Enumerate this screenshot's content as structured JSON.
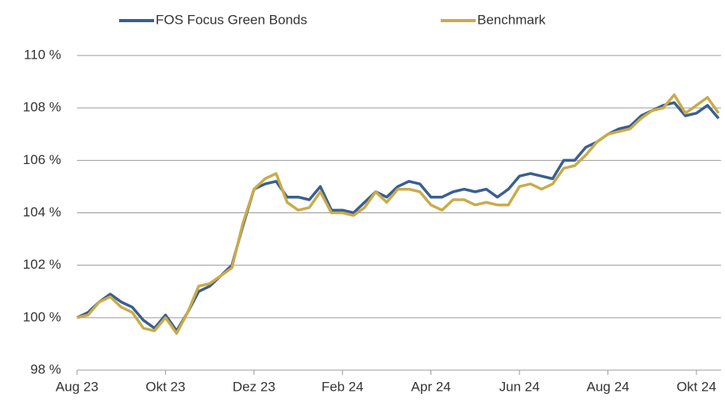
{
  "chart_data": {
    "type": "line",
    "categories": [
      "Aug 23",
      null,
      null,
      null,
      null,
      null,
      null,
      null,
      "Okt 23",
      null,
      null,
      null,
      null,
      null,
      null,
      null,
      "Dez 23",
      null,
      null,
      null,
      null,
      null,
      null,
      null,
      "Feb 24",
      null,
      null,
      null,
      null,
      null,
      null,
      null,
      "Apr 24",
      null,
      null,
      null,
      null,
      null,
      null,
      null,
      "Jun 24",
      null,
      null,
      null,
      null,
      null,
      null,
      null,
      "Aug 24",
      null,
      null,
      null,
      null,
      null,
      null,
      null,
      "Okt 24",
      null,
      null
    ],
    "series": [
      {
        "name": "FOS Focus Green Bonds",
        "color": "#3a5f8f",
        "values": [
          100.0,
          100.2,
          100.6,
          100.9,
          100.6,
          100.4,
          99.9,
          99.6,
          100.1,
          99.5,
          100.2,
          101.0,
          101.2,
          101.6,
          102.0,
          103.5,
          104.9,
          105.1,
          105.2,
          104.6,
          104.6,
          104.5,
          105.0,
          104.1,
          104.1,
          104.0,
          104.4,
          104.8,
          104.6,
          105.0,
          105.2,
          105.1,
          104.6,
          104.6,
          104.8,
          104.9,
          104.8,
          104.9,
          104.6,
          104.9,
          105.4,
          105.5,
          105.4,
          105.3,
          106.0,
          106.0,
          106.5,
          106.7,
          107.0,
          107.2,
          107.3,
          107.7,
          107.9,
          108.1,
          108.2,
          107.7,
          107.8,
          108.1,
          107.6
        ]
      },
      {
        "name": "Benchmark",
        "color": "#c9ab4a",
        "values": [
          100.0,
          100.1,
          100.6,
          100.8,
          100.4,
          100.2,
          99.6,
          99.5,
          100.0,
          99.4,
          100.2,
          101.2,
          101.3,
          101.6,
          101.9,
          103.6,
          104.9,
          105.3,
          105.5,
          104.4,
          104.1,
          104.2,
          104.8,
          104.0,
          104.0,
          103.9,
          104.2,
          104.8,
          104.4,
          104.9,
          104.9,
          104.8,
          104.3,
          104.1,
          104.5,
          104.5,
          104.3,
          104.4,
          104.3,
          104.3,
          105.0,
          105.1,
          104.9,
          105.1,
          105.7,
          105.8,
          106.2,
          106.7,
          107.0,
          107.1,
          107.2,
          107.6,
          107.9,
          108.0,
          108.5,
          107.8,
          108.1,
          108.4,
          107.8
        ]
      }
    ],
    "ylim": [
      98,
      110
    ],
    "yticks": [
      {
        "value": 98,
        "label": "98 %"
      },
      {
        "value": 100,
        "label": "100 %"
      },
      {
        "value": 102,
        "label": "102 %"
      },
      {
        "value": 104,
        "label": "104 %"
      },
      {
        "value": 106,
        "label": "106 %"
      },
      {
        "value": 108,
        "label": "108 %"
      },
      {
        "value": 110,
        "label": "110 %"
      }
    ],
    "grid": true
  }
}
